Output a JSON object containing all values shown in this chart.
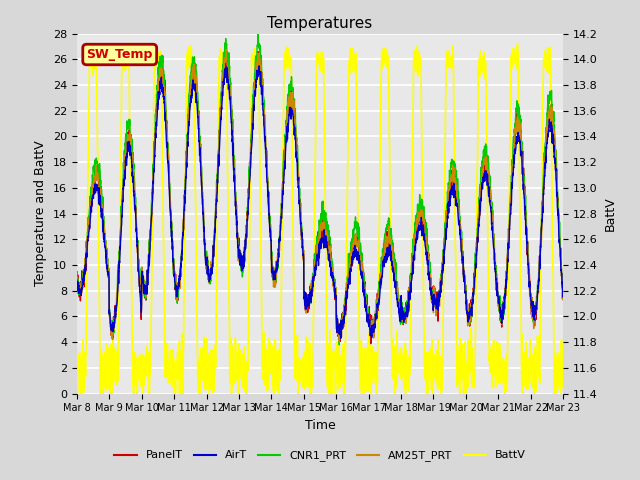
{
  "title": "Temperatures",
  "xlabel": "Time",
  "ylabel_left": "Temperature and BattV",
  "ylabel_right": "BattV",
  "ylim_left": [
    0,
    28
  ],
  "ylim_right": [
    11.4,
    14.2
  ],
  "yticks_left": [
    0,
    2,
    4,
    6,
    8,
    10,
    12,
    14,
    16,
    18,
    20,
    22,
    24,
    26,
    28
  ],
  "yticks_right": [
    11.4,
    11.6,
    11.8,
    12.0,
    12.2,
    12.4,
    12.6,
    12.8,
    13.0,
    13.2,
    13.4,
    13.6,
    13.8,
    14.0,
    14.2
  ],
  "xtick_labels": [
    "Mar 8",
    "Mar 9",
    "Mar 10",
    "Mar 11",
    "Mar 12",
    "Mar 13",
    "Mar 14",
    "Mar 15",
    "Mar 16",
    "Mar 17",
    "Mar 18",
    "Mar 19",
    "Mar 20",
    "Mar 21",
    "Mar 22",
    "Mar 23"
  ],
  "series_colors": {
    "PanelT": "#cc0000",
    "AirT": "#0000cc",
    "CNR1_PRT": "#00cc00",
    "AM25T_PRT": "#cc8800",
    "BattV": "#ffff00"
  },
  "series_linewidths": {
    "PanelT": 1.0,
    "AirT": 1.0,
    "CNR1_PRT": 1.0,
    "AM25T_PRT": 1.0,
    "BattV": 1.2
  },
  "inset_label": "SW_Temp",
  "inset_label_color": "#cc0000",
  "inset_box_facecolor": "#ffff99",
  "inset_box_edgecolor": "#aa0000",
  "background_color": "#d8d8d8",
  "plot_bg_color": "#e8e8e8",
  "grid_color": "#ffffff",
  "legend_colors": [
    "#cc0000",
    "#0000cc",
    "#00cc00",
    "#cc8800",
    "#ffff00"
  ],
  "legend_labels": [
    "PanelT",
    "AirT",
    "CNR1_PRT",
    "AM25T_PRT",
    "BattV"
  ],
  "days": 15
}
